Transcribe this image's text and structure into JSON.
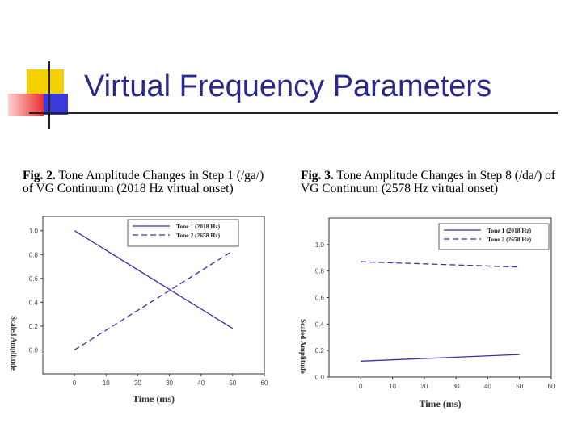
{
  "slide": {
    "title": "Virtual Frequency Parameters"
  },
  "figures": [
    {
      "caption_number": "Fig. 2.",
      "caption_line1_rest": " Tone Amplitude Changes in Step 1 (/ga/)",
      "caption_line2": "of VG Continuum (2018 Hz virtual onset)"
    },
    {
      "caption_number": "Fig. 3.",
      "caption_line1_rest": "  Tone Amplitude Changes in Step 8 (/da/) of",
      "caption_line2": "VG Continuum (2578 Hz virtual onset)"
    }
  ],
  "colors": {
    "title": "#2a2a8c",
    "series": "#3333aa",
    "deco_yellow": "#f5d000",
    "deco_red": "#e83030",
    "deco_blue": "#3a3adc"
  },
  "chart_data": [
    {
      "type": "line",
      "xlabel": "Time (ms)",
      "ylabel": "Scaled Amplitude",
      "xlim": [
        -10,
        60
      ],
      "ylim": [
        -0.2,
        1.12
      ],
      "xticks": [
        0,
        10,
        20,
        30,
        40,
        50,
        60
      ],
      "yticks": [
        0.0,
        0.2,
        0.4,
        0.6,
        0.8,
        1.0
      ],
      "ytick_labels": [
        "0.0",
        "0.2",
        "0.4",
        "0.6",
        "0.8",
        "1.0"
      ],
      "legend_position": "top-right",
      "series": [
        {
          "name": "Tone 1 (2018 Hz)",
          "style": "solid",
          "x": [
            0,
            50
          ],
          "y": [
            1.0,
            0.18
          ]
        },
        {
          "name": "Tone 2 (2658 Hz)",
          "style": "dashed",
          "x": [
            0,
            50
          ],
          "y": [
            0.0,
            0.83
          ]
        }
      ]
    },
    {
      "type": "line",
      "xlabel": "Time (ms)",
      "ylabel": "Scaled Amplitude",
      "xlim": [
        -10,
        60
      ],
      "ylim": [
        0.0,
        1.2
      ],
      "xticks": [
        0,
        10,
        20,
        30,
        40,
        50,
        60
      ],
      "yticks": [
        0.0,
        0.2,
        0.4,
        0.6,
        0.8,
        1.0
      ],
      "ytick_labels": [
        "0.0",
        "0.2",
        "0.4",
        "0.6",
        "0.8",
        "1.0"
      ],
      "legend_position": "top-right",
      "series": [
        {
          "name": "Tone 1 (2018 Hz)",
          "style": "solid",
          "x": [
            0,
            50
          ],
          "y": [
            0.12,
            0.17
          ]
        },
        {
          "name": "Tone 2 (2658 Hz)",
          "style": "dashed",
          "x": [
            0,
            50
          ],
          "y": [
            0.87,
            0.83
          ]
        }
      ]
    }
  ]
}
